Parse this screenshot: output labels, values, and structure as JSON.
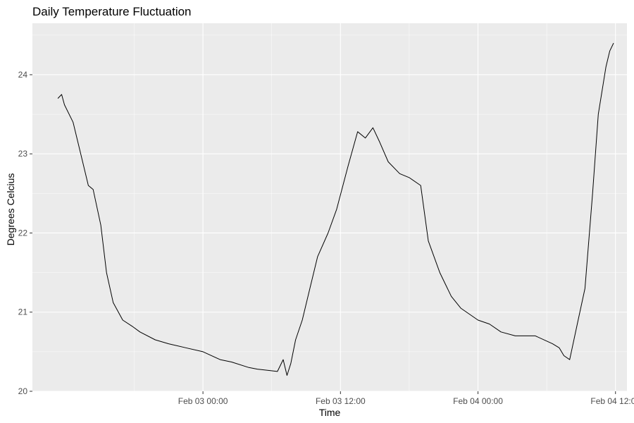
{
  "chart_data": {
    "type": "line",
    "title": "Daily Temperature Fluctuation",
    "xlabel": "Time",
    "ylabel": "Degrees Celcius",
    "xlim": [
      "2021-02-02 09:07",
      "2021-02-04 13:00"
    ],
    "ylim": [
      20.0,
      24.65
    ],
    "x_ticks": [
      {
        "value": "2021-02-03 00:00",
        "label": "Feb 03 00:00"
      },
      {
        "value": "2021-02-03 12:00",
        "label": "Feb 03 12:00"
      },
      {
        "value": "2021-02-04 00:00",
        "label": "Feb 04 00:00"
      },
      {
        "value": "2021-02-04 12:00",
        "label": "Feb 04 12:00"
      }
    ],
    "y_ticks": [
      20,
      21,
      22,
      23,
      24
    ],
    "y_tick_labels": [
      "20",
      "21",
      "22",
      "23",
      "24"
    ],
    "grid": true,
    "background_color": "#ebebeb",
    "line_color": "#000000",
    "series": [
      {
        "x": [
          "2021-02-02 11:20",
          "2021-02-02 11:40",
          "2021-02-02 11:55",
          "2021-02-02 12:40",
          "2021-02-02 13:20",
          "2021-02-02 14:00",
          "2021-02-02 14:25",
          "2021-02-02 15:05",
          "2021-02-02 15:35",
          "2021-02-02 16:10",
          "2021-02-02 17:00",
          "2021-02-02 17:50",
          "2021-02-02 18:30",
          "2021-02-02 19:50",
          "2021-02-02 21:00",
          "2021-02-02 22:30",
          "2021-02-03 00:00",
          "2021-02-03 01:30",
          "2021-02-03 02:30",
          "2021-02-03 04:00",
          "2021-02-03 04:45",
          "2021-02-03 06:30",
          "2021-02-03 07:00",
          "2021-02-03 07:20",
          "2021-02-03 07:40",
          "2021-02-03 08:05",
          "2021-02-03 08:40",
          "2021-02-03 09:20",
          "2021-02-03 10:00",
          "2021-02-03 10:55",
          "2021-02-03 11:40",
          "2021-02-03 12:40",
          "2021-02-03 13:30",
          "2021-02-03 14:10",
          "2021-02-03 14:50",
          "2021-02-03 15:25",
          "2021-02-03 16:10",
          "2021-02-03 17:10",
          "2021-02-03 18:00",
          "2021-02-03 19:00",
          "2021-02-03 19:40",
          "2021-02-03 20:40",
          "2021-02-03 21:40",
          "2021-02-03 22:30",
          "2021-02-04 00:00",
          "2021-02-04 01:00",
          "2021-02-04 02:00",
          "2021-02-04 03:15",
          "2021-02-04 05:00",
          "2021-02-04 06:30",
          "2021-02-04 07:05",
          "2021-02-04 07:30",
          "2021-02-04 08:00",
          "2021-02-04 08:40",
          "2021-02-04 09:20",
          "2021-02-04 10:00",
          "2021-02-04 10:30",
          "2021-02-04 11:10",
          "2021-02-04 11:30",
          "2021-02-04 11:50"
        ],
        "y": [
          23.7,
          23.75,
          23.62,
          23.4,
          23.0,
          22.6,
          22.55,
          22.1,
          21.5,
          21.12,
          20.9,
          20.82,
          20.75,
          20.65,
          20.6,
          20.55,
          20.5,
          20.4,
          20.37,
          20.3,
          20.28,
          20.25,
          20.4,
          20.2,
          20.35,
          20.65,
          20.9,
          21.3,
          21.7,
          22.0,
          22.3,
          22.85,
          23.28,
          23.2,
          23.33,
          23.15,
          22.9,
          22.75,
          22.7,
          22.6,
          21.9,
          21.5,
          21.2,
          21.05,
          20.9,
          20.85,
          20.75,
          20.7,
          20.7,
          20.6,
          20.55,
          20.45,
          20.4,
          20.85,
          21.3,
          22.5,
          23.5,
          24.1,
          24.3,
          24.4
        ]
      }
    ]
  }
}
